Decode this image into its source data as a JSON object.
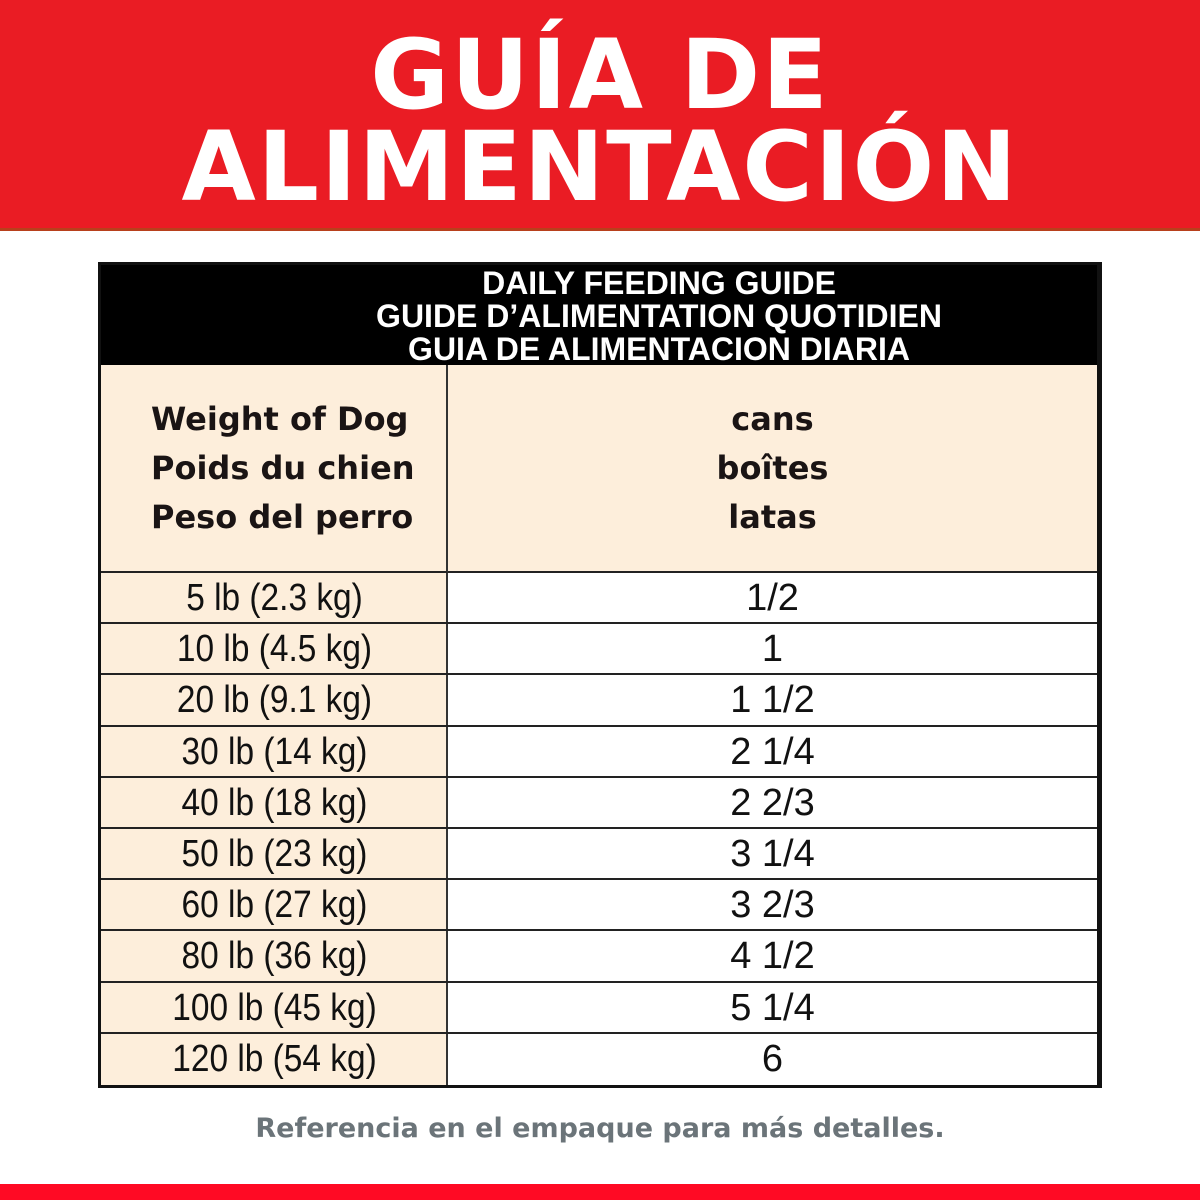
{
  "banner": {
    "title_line1": "GUÍA DE",
    "title_line2": "ALIMENTACIÓN",
    "color": "#ea1c24"
  },
  "table": {
    "heading": [
      "DAILY FEEDING GUIDE",
      "GUIDE D’ALIMENTATION QUOTIDIEN",
      "GUIA DE ALIMENTACION DIARIA"
    ],
    "col_weight": [
      "Weight of Dog",
      "Poids du chien",
      "Peso del perro"
    ],
    "col_cans": [
      "cans",
      "boîtes",
      "latas"
    ],
    "rows": [
      {
        "weight": "5 lb (2.3 kg)",
        "cans": "1/2"
      },
      {
        "weight": "10 lb (4.5 kg)",
        "cans": "1"
      },
      {
        "weight": "20 lb (9.1 kg)",
        "cans": "1 1/2"
      },
      {
        "weight": "30 lb (14 kg)",
        "cans": "2 1/4"
      },
      {
        "weight": "40 lb (18 kg)",
        "cans": "2 2/3"
      },
      {
        "weight": "50 lb (23 kg)",
        "cans": "3 1/4"
      },
      {
        "weight": "60 lb (27 kg)",
        "cans": "3 2/3"
      },
      {
        "weight": "80 lb (36 kg)",
        "cans": "4 1/2"
      },
      {
        "weight": "100 lb (45 kg)",
        "cans": "5 1/4"
      },
      {
        "weight": "120 lb (54 kg)",
        "cans": "6"
      }
    ]
  },
  "footer": {
    "note": "Referencia en el empaque para más detalles."
  }
}
